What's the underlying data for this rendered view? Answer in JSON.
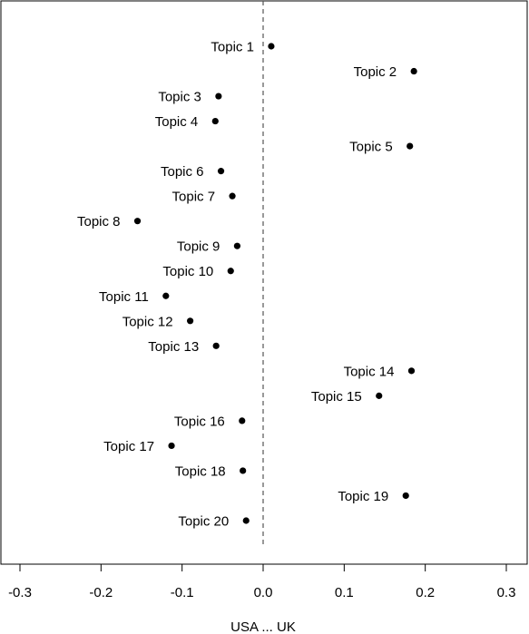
{
  "chart_data": {
    "type": "scatter",
    "title": "",
    "xlabel": "USA ... UK",
    "ylabel": "",
    "xlim": [
      -0.3,
      0.3
    ],
    "xticks": [
      -0.3,
      -0.2,
      -0.1,
      0.0,
      0.1,
      0.2,
      0.3
    ],
    "xtick_labels": [
      "-0.3",
      "-0.2",
      "-0.1",
      "0.0",
      "0.1",
      "0.2",
      "0.3"
    ],
    "reference_line": {
      "x": 0,
      "style": "dashed"
    },
    "grid": false,
    "points": [
      {
        "label": "Topic 1",
        "x": 0.01
      },
      {
        "label": "Topic 2",
        "x": 0.186
      },
      {
        "label": "Topic 3",
        "x": -0.055
      },
      {
        "label": "Topic 4",
        "x": -0.059
      },
      {
        "label": "Topic 5",
        "x": 0.181
      },
      {
        "label": "Topic 6",
        "x": -0.052
      },
      {
        "label": "Topic 7",
        "x": -0.038
      },
      {
        "label": "Topic 8",
        "x": -0.155
      },
      {
        "label": "Topic 9",
        "x": -0.032
      },
      {
        "label": "Topic 10",
        "x": -0.04
      },
      {
        "label": "Topic 11",
        "x": -0.12
      },
      {
        "label": "Topic 12",
        "x": -0.09
      },
      {
        "label": "Topic 13",
        "x": -0.058
      },
      {
        "label": "Topic 14",
        "x": 0.183
      },
      {
        "label": "Topic 15",
        "x": 0.143
      },
      {
        "label": "Topic 16",
        "x": -0.026
      },
      {
        "label": "Topic 17",
        "x": -0.113
      },
      {
        "label": "Topic 18",
        "x": -0.025
      },
      {
        "label": "Topic 19",
        "x": 0.176
      },
      {
        "label": "Topic 20",
        "x": -0.021
      }
    ]
  }
}
